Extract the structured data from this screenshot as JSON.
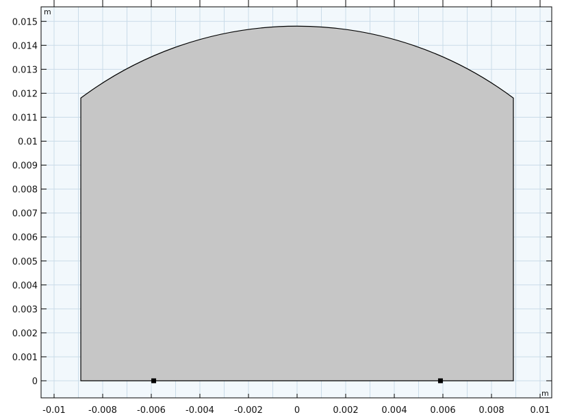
{
  "axes": {
    "x_unit": "m",
    "y_unit": "m",
    "x_ticks": [
      "-0.01",
      "-0.008",
      "-0.006",
      "-0.004",
      "-0.002",
      "0",
      "0.002",
      "0.004",
      "0.006",
      "0.008",
      "0.01"
    ],
    "y_ticks": [
      "0",
      "0.001",
      "0.002",
      "0.003",
      "0.004",
      "0.005",
      "0.006",
      "0.007",
      "0.008",
      "0.009",
      "0.01",
      "0.011",
      "0.012",
      "0.013",
      "0.014",
      "0.015"
    ]
  },
  "colors": {
    "plot_background": "#f2f8fc",
    "grid": "#c9dbe8",
    "geometry_fill": "#c6c6c6",
    "geometry_stroke": "#000000",
    "axis": "#000000"
  },
  "geometry": {
    "left_wall_x": -0.0089,
    "right_wall_x": 0.0089,
    "base_y": 0,
    "wall_top_y": 0.0118,
    "arc_peak_y": 0.0148,
    "points": [
      [
        -0.0059,
        0
      ],
      [
        0.0059,
        0
      ]
    ]
  }
}
